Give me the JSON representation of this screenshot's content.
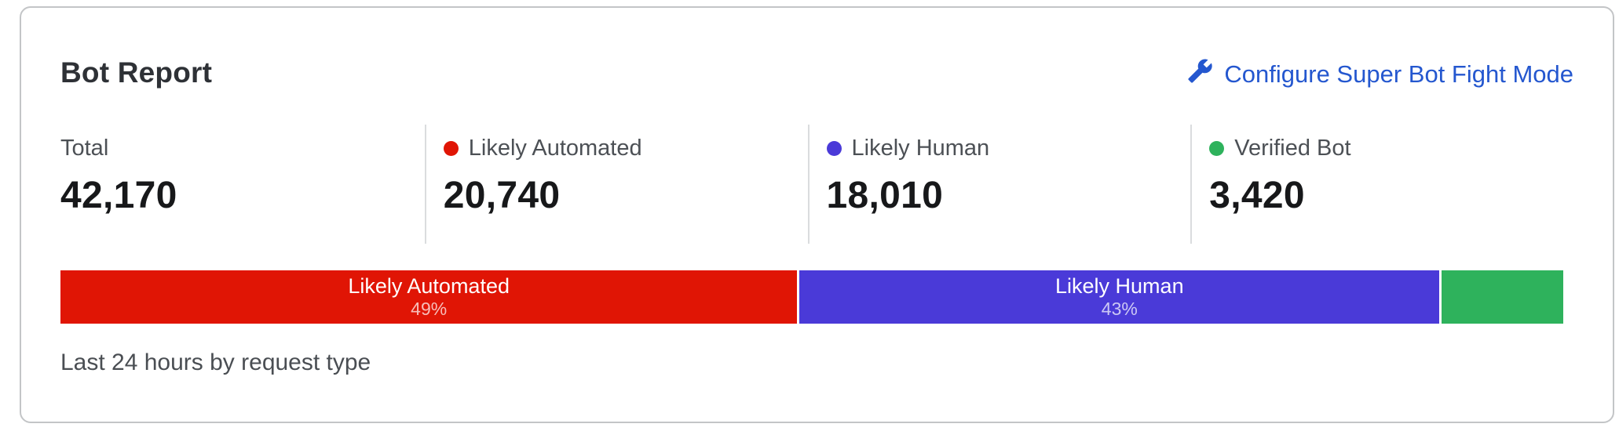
{
  "card": {
    "title": "Bot Report",
    "action": {
      "label": "Configure Super Bot Fight Mode",
      "icon": "wrench-icon",
      "color": "#2457cf"
    },
    "stats": [
      {
        "label": "Total",
        "value": "42,170",
        "dot_color": null
      },
      {
        "label": "Likely Automated",
        "value": "20,740",
        "dot_color": "#e01505"
      },
      {
        "label": "Likely Human",
        "value": "18,010",
        "dot_color": "#4a3ad8"
      },
      {
        "label": "Verified Bot",
        "value": "3,420",
        "dot_color": "#2eb25c"
      }
    ],
    "caption": "Last 24 hours by request type"
  },
  "chart_data": {
    "type": "bar",
    "variant": "horizontal-stacked",
    "title": "Bot Report",
    "categories": [
      "Likely Automated",
      "Likely Human",
      "Verified Bot"
    ],
    "values": [
      20740,
      18010,
      3420
    ],
    "total": 42170,
    "percent_labels": [
      "49%",
      "43%",
      null
    ],
    "in_bar_labels": [
      "Likely Automated",
      "Likely Human",
      null
    ],
    "colors": [
      "#e01505",
      "#4a3ad8",
      "#2eb25c"
    ],
    "xlabel": "",
    "ylabel": "",
    "legend_position": "stats-row-above-bar",
    "note": "Last 24 hours by request type"
  }
}
